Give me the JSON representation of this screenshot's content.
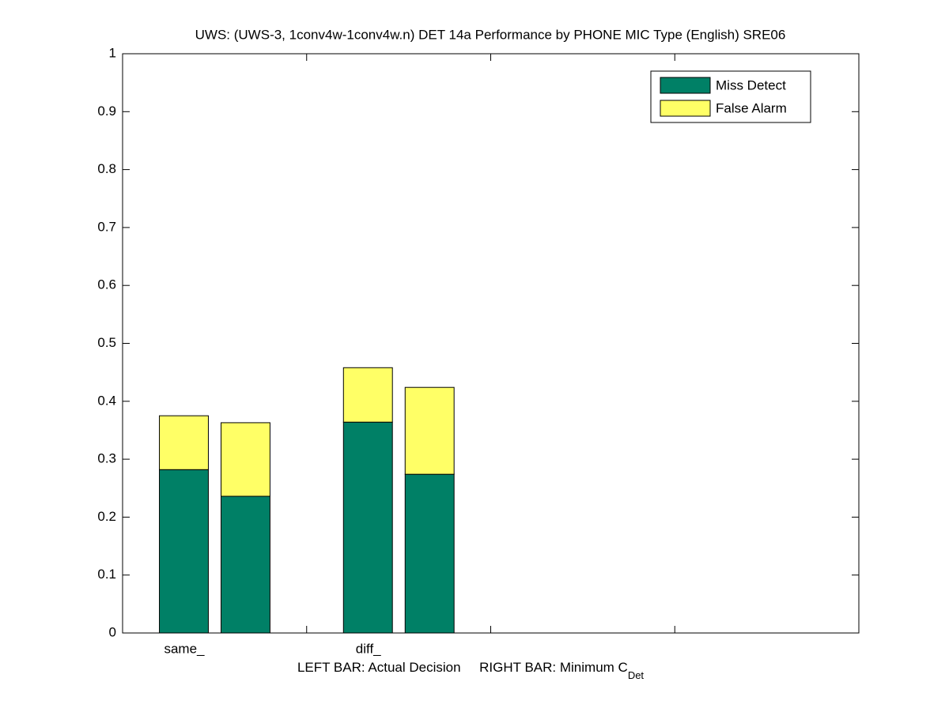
{
  "chart_data": {
    "type": "stacked-bar-pairs",
    "title": "UWS: (UWS-3, 1conv4w-1conv4w.n) DET 14a Performance by PHONE MIC Type (English) SRE06",
    "x_label": "LEFT BAR: Actual Decision     RIGHT BAR: Minimum C",
    "x_label_subscript": "Det",
    "categories": [
      "same_",
      "diff_"
    ],
    "series": [
      {
        "name": "Miss Detect",
        "color": "#008066",
        "values": [
          [
            0.282,
            0.236
          ],
          [
            0.364,
            0.274
          ]
        ]
      },
      {
        "name": "False Alarm",
        "color": "#ffff66",
        "values": [
          [
            0.093,
            0.127
          ],
          [
            0.094,
            0.15
          ]
        ]
      }
    ],
    "ylim": [
      0,
      1
    ],
    "yticks": [
      0,
      0.1,
      0.2,
      0.3,
      0.4,
      0.5,
      0.6,
      0.7,
      0.8,
      0.9,
      1
    ],
    "legend": "upper right"
  }
}
